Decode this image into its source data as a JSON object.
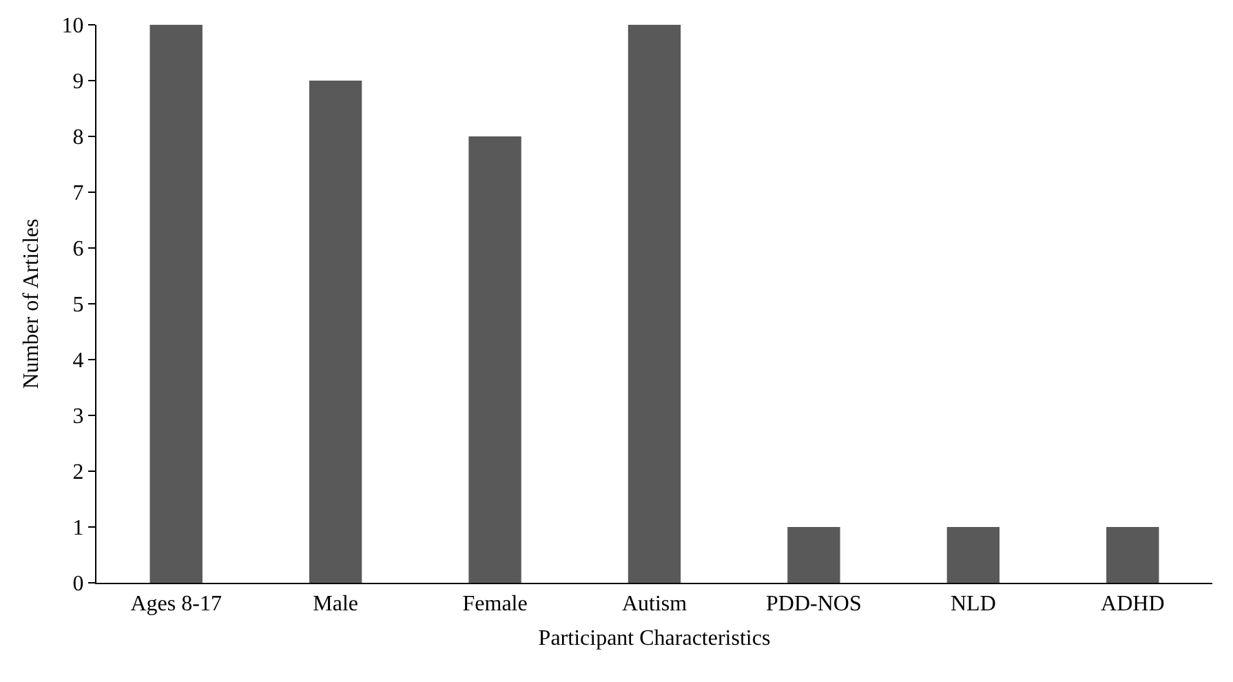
{
  "chart_data": {
    "type": "bar",
    "xlabel": "Participant Characteristics",
    "ylabel": "Number of Articles",
    "categories": [
      "Ages 8-17",
      "Male",
      "Female",
      "Autism",
      "PDD-NOS",
      "NLD",
      "ADHD"
    ],
    "values": [
      10,
      9,
      8,
      10,
      1,
      1,
      1
    ],
    "color": "#595959",
    "ylim": [
      0,
      10
    ],
    "yticks": [
      0,
      1,
      2,
      3,
      4,
      5,
      6,
      7,
      8,
      9,
      10
    ],
    "grid": false
  }
}
